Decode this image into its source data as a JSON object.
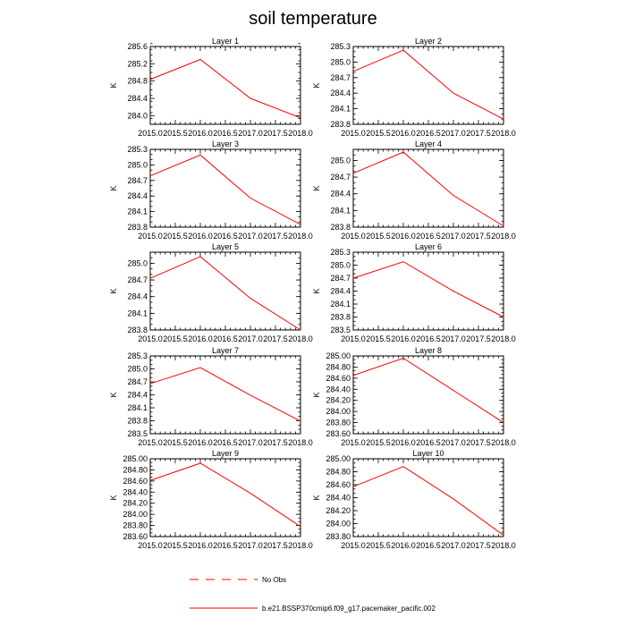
{
  "figure": {
    "title": "soil temperature"
  },
  "legend": [
    {
      "label": "No Obs",
      "color": "#ff0000",
      "dash": "dashed"
    },
    {
      "label": "b.e21.BSSP370cmip6.f09_g17.pacemaker_pacific.002",
      "color": "#ff0000",
      "dash": "solid"
    }
  ],
  "chart_data": [
    {
      "type": "line",
      "title": "Layer 1",
      "xlabel": "",
      "ylabel": "K",
      "x": [
        2015,
        2016,
        2017,
        2018
      ],
      "xlim": [
        2015,
        2018
      ],
      "xticks": [
        "2015.0",
        "2015.5",
        "2016.0",
        "2016.5",
        "2017.0",
        "2017.5",
        "2018.0"
      ],
      "ylim": [
        283.8,
        285.6
      ],
      "yticks": [
        "284.0",
        "284.4",
        "284.8",
        "285.2",
        "285.6"
      ],
      "series": [
        {
          "name": "b.e21.BSSP370cmip6.f09_g17.pacemaker_pacific.002",
          "values": [
            284.84,
            285.3,
            284.4,
            283.95
          ],
          "color": "#ff0000"
        }
      ]
    },
    {
      "type": "line",
      "title": "Layer 2",
      "xlabel": "",
      "ylabel": "K",
      "x": [
        2015,
        2016,
        2017,
        2018
      ],
      "xlim": [
        2015,
        2018
      ],
      "xticks": [
        "2015.0",
        "2015.5",
        "2016.0",
        "2016.5",
        "2017.0",
        "2017.5",
        "2018.0"
      ],
      "ylim": [
        283.8,
        285.3
      ],
      "yticks": [
        "283.8",
        "284.1",
        "284.4",
        "284.7",
        "285.0",
        "285.3"
      ],
      "series": [
        {
          "name": "b.e21.BSSP370cmip6.f09_g17.pacemaker_pacific.002",
          "values": [
            284.82,
            285.23,
            284.4,
            283.9
          ],
          "color": "#ff0000"
        }
      ]
    },
    {
      "type": "line",
      "title": "Layer 3",
      "xlabel": "",
      "ylabel": "K",
      "x": [
        2015,
        2016,
        2017,
        2018
      ],
      "xlim": [
        2015,
        2018
      ],
      "xticks": [
        "2015.0",
        "2015.5",
        "2016.0",
        "2016.5",
        "2017.0",
        "2017.5",
        "2018.0"
      ],
      "ylim": [
        283.8,
        285.3
      ],
      "yticks": [
        "283.8",
        "284.1",
        "284.4",
        "284.7",
        "285.0",
        "285.3"
      ],
      "series": [
        {
          "name": "b.e21.BSSP370cmip6.f09_g17.pacemaker_pacific.002",
          "values": [
            284.79,
            285.19,
            284.36,
            283.85
          ],
          "color": "#ff0000"
        }
      ]
    },
    {
      "type": "line",
      "title": "Layer 4",
      "xlabel": "",
      "ylabel": "K",
      "x": [
        2015,
        2016,
        2017,
        2018
      ],
      "xlim": [
        2015,
        2018
      ],
      "xticks": [
        "2015.0",
        "2015.5",
        "2016.0",
        "2016.5",
        "2017.0",
        "2017.5",
        "2018.0"
      ],
      "ylim": [
        283.8,
        285.2
      ],
      "yticks": [
        "283.8",
        "284.1",
        "284.4",
        "284.7",
        "285.0"
      ],
      "series": [
        {
          "name": "b.e21.BSSP370cmip6.f09_g17.pacemaker_pacific.002",
          "values": [
            284.77,
            285.15,
            284.37,
            283.82
          ],
          "color": "#ff0000"
        }
      ]
    },
    {
      "type": "line",
      "title": "Layer 5",
      "xlabel": "",
      "ylabel": "K",
      "x": [
        2015,
        2016,
        2017,
        2018
      ],
      "xlim": [
        2015,
        2018
      ],
      "xticks": [
        "2015.0",
        "2015.5",
        "2016.0",
        "2016.5",
        "2017.0",
        "2017.5",
        "2018.0"
      ],
      "ylim": [
        283.8,
        285.2
      ],
      "yticks": [
        "283.8",
        "284.1",
        "284.4",
        "284.7",
        "285.0"
      ],
      "series": [
        {
          "name": "b.e21.BSSP370cmip6.f09_g17.pacemaker_pacific.002",
          "values": [
            284.73,
            285.12,
            284.37,
            283.8
          ],
          "color": "#ff0000"
        }
      ]
    },
    {
      "type": "line",
      "title": "Layer 6",
      "xlabel": "",
      "ylabel": "K",
      "x": [
        2015,
        2016,
        2017,
        2018
      ],
      "xlim": [
        2015,
        2018
      ],
      "xticks": [
        "2015.0",
        "2015.5",
        "2016.0",
        "2016.5",
        "2017.0",
        "2017.5",
        "2018.0"
      ],
      "ylim": [
        283.5,
        285.3
      ],
      "yticks": [
        "283.5",
        "283.8",
        "284.1",
        "284.4",
        "284.7",
        "285.0",
        "285.3"
      ],
      "series": [
        {
          "name": "b.e21.BSSP370cmip6.f09_g17.pacemaker_pacific.002",
          "values": [
            284.7,
            285.08,
            284.4,
            283.8
          ],
          "color": "#ff0000"
        }
      ]
    },
    {
      "type": "line",
      "title": "Layer 7",
      "xlabel": "",
      "ylabel": "K",
      "x": [
        2015,
        2016,
        2017,
        2018
      ],
      "xlim": [
        2015,
        2018
      ],
      "xticks": [
        "2015.0",
        "2015.5",
        "2016.0",
        "2016.5",
        "2017.0",
        "2017.5",
        "2018.0"
      ],
      "ylim": [
        283.5,
        285.3
      ],
      "yticks": [
        "283.5",
        "283.8",
        "284.1",
        "284.4",
        "284.7",
        "285.0",
        "285.3"
      ],
      "series": [
        {
          "name": "b.e21.BSSP370cmip6.f09_g17.pacemaker_pacific.002",
          "values": [
            284.66,
            285.03,
            284.39,
            283.79
          ],
          "color": "#ff0000"
        }
      ]
    },
    {
      "type": "line",
      "title": "Layer 8",
      "xlabel": "",
      "ylabel": "K",
      "x": [
        2015,
        2016,
        2017,
        2018
      ],
      "xlim": [
        2015,
        2018
      ],
      "xticks": [
        "2015.0",
        "2015.5",
        "2016.0",
        "2016.5",
        "2017.0",
        "2017.5",
        "2018.0"
      ],
      "ylim": [
        283.6,
        285.0
      ],
      "yticks": [
        "283.60",
        "283.80",
        "284.00",
        "284.20",
        "284.40",
        "284.60",
        "284.80",
        "285.00"
      ],
      "series": [
        {
          "name": "b.e21.BSSP370cmip6.f09_g17.pacemaker_pacific.002",
          "values": [
            284.65,
            284.96,
            284.38,
            283.8
          ],
          "color": "#ff0000"
        }
      ]
    },
    {
      "type": "line",
      "title": "Layer 9",
      "xlabel": "",
      "ylabel": "K",
      "x": [
        2015,
        2016,
        2017,
        2018
      ],
      "xlim": [
        2015,
        2018
      ],
      "xticks": [
        "2015.0",
        "2015.5",
        "2016.0",
        "2016.5",
        "2017.0",
        "2017.5",
        "2018.0"
      ],
      "ylim": [
        283.6,
        285.0
      ],
      "yticks": [
        "283.60",
        "283.80",
        "284.00",
        "284.20",
        "284.40",
        "284.60",
        "284.80",
        "285.00"
      ],
      "series": [
        {
          "name": "b.e21.BSSP370cmip6.f09_g17.pacemaker_pacific.002",
          "values": [
            284.61,
            284.92,
            284.38,
            283.78
          ],
          "color": "#ff0000"
        }
      ]
    },
    {
      "type": "line",
      "title": "Layer 10",
      "xlabel": "",
      "ylabel": "K",
      "x": [
        2015,
        2016,
        2017,
        2018
      ],
      "xlim": [
        2015,
        2018
      ],
      "xticks": [
        "2015.0",
        "2015.5",
        "2016.0",
        "2016.5",
        "2017.0",
        "2017.5",
        "2018.0"
      ],
      "ylim": [
        283.8,
        285.0
      ],
      "yticks": [
        "283.80",
        "284.00",
        "284.20",
        "284.40",
        "284.60",
        "284.80",
        "285.00"
      ],
      "series": [
        {
          "name": "b.e21.BSSP370cmip6.f09_g17.pacemaker_pacific.002",
          "values": [
            284.57,
            284.88,
            284.38,
            283.82
          ],
          "color": "#ff0000"
        }
      ]
    }
  ]
}
